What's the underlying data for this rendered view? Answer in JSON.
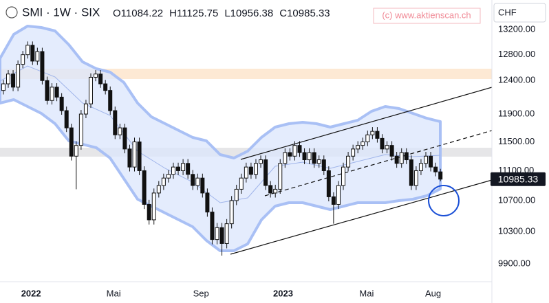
{
  "chart_data": {
    "type": "candlestick",
    "title": "SMI · 1W · SIX",
    "ohlc_letters": [
      "O",
      "H",
      "L",
      "C"
    ],
    "watermark": "(c) www.aktienscan.ch",
    "currency": "CHF",
    "log_scale": true,
    "ylim": [
      9685,
      13690
    ],
    "yticks": [
      {
        "value": 13200,
        "label": "13200.00"
      },
      {
        "value": 12800,
        "label": "12800.00"
      },
      {
        "value": 12400,
        "label": "12400.00"
      },
      {
        "value": 11900,
        "label": "11900.00"
      },
      {
        "value": 11500,
        "label": "11500.00"
      },
      {
        "value": 11100,
        "label": "11100.00"
      },
      {
        "value": 10700,
        "label": "10700.00"
      },
      {
        "value": 10300,
        "label": "10300.00"
      },
      {
        "value": 9900,
        "label": "9900.00"
      }
    ],
    "xlim": [
      -0.7,
      100.6
    ],
    "xticks": [
      {
        "value": 5.7,
        "label": "2022"
      },
      {
        "value": 22.7,
        "label": "Mai"
      },
      {
        "value": 40.7,
        "label": "Sep"
      },
      {
        "value": 57.6,
        "label": "2023"
      },
      {
        "value": 74.8,
        "label": "Mai"
      },
      {
        "value": 88.5,
        "label": "Aug"
      }
    ],
    "up_color": "#ffffff",
    "down_color": "#111111",
    "open": [
      12250,
      12350,
      12500,
      12300,
      12650,
      12800,
      12950,
      12700,
      12850,
      12400,
      12100,
      12300,
      12150,
      11950,
      11700,
      11300,
      11450,
      11900,
      12050,
      12450,
      12500,
      12350,
      12250,
      11950,
      11600,
      11700,
      11400,
      11150,
      11500,
      11100,
      10650,
      10450,
      10800,
      10900,
      11000,
      11050,
      11150,
      11100,
      11200,
      11050,
      10900,
      11000,
      10800,
      10550,
      10200,
      10350,
      10150,
      10400,
      10700,
      10850,
      11000,
      11150,
      11050,
      11200,
      11250,
      10900,
      10800,
      10850,
      11200,
      11350,
      11300,
      11450,
      11350,
      11250,
      11350,
      11200,
      11250,
      11100,
      10750,
      10650,
      10900,
      11150,
      11300,
      11400,
      11450,
      11500,
      11600,
      11650,
      11550,
      11400,
      11450,
      11300,
      11200,
      11350,
      11250,
      10900,
      11100,
      11200,
      11300,
      11150,
      11084.22
    ],
    "high": [
      12410,
      12560,
      12560,
      12710,
      12860,
      13010,
      13010,
      12910,
      12910,
      12460,
      12360,
      12360,
      12210,
      12010,
      11760,
      11510,
      11960,
      12110,
      12510,
      12560,
      12560,
      12410,
      12310,
      12010,
      11760,
      11760,
      11460,
      11560,
      11560,
      11160,
      10710,
      10860,
      10960,
      11060,
      11110,
      11210,
      11210,
      11260,
      11260,
      11110,
      11060,
      11060,
      10860,
      10610,
      10410,
      10410,
      10460,
      10760,
      10910,
      11060,
      11210,
      11210,
      11260,
      11310,
      11310,
      10960,
      10910,
      11260,
      11410,
      11410,
      11510,
      11510,
      11410,
      11410,
      11410,
      11310,
      11310,
      11160,
      10810,
      10960,
      11210,
      11360,
      11460,
      11510,
      11560,
      11660,
      11710,
      11710,
      11610,
      11510,
      11510,
      11360,
      11410,
      11410,
      11310,
      11160,
      11260,
      11360,
      11360,
      11210,
      11125.75
    ],
    "low": [
      12190,
      12290,
      12240,
      12240,
      12590,
      12740,
      12640,
      12640,
      12340,
      12040,
      12040,
      12090,
      11890,
      11640,
      11240,
      10850,
      11390,
      11840,
      11990,
      12390,
      12290,
      12190,
      11890,
      11540,
      11540,
      11340,
      11090,
      11090,
      11040,
      10590,
      10390,
      10390,
      10740,
      10840,
      10940,
      10990,
      11040,
      11040,
      10990,
      10840,
      10840,
      10740,
      10490,
      10140,
      10140,
      10000,
      10090,
      10340,
      10640,
      10790,
      10940,
      10990,
      10990,
      11140,
      10840,
      10740,
      10740,
      10790,
      11140,
      11240,
      11240,
      11290,
      11190,
      11190,
      11140,
      11140,
      11040,
      10690,
      10400,
      10590,
      10840,
      11090,
      11240,
      11340,
      11390,
      11440,
      11540,
      11490,
      11340,
      11340,
      11240,
      11140,
      11140,
      11190,
      10840,
      10840,
      11040,
      11140,
      11090,
      11024,
      10956.38
    ],
    "close": [
      12350,
      12500,
      12300,
      12650,
      12800,
      12950,
      12700,
      12850,
      12400,
      12100,
      12300,
      12150,
      11950,
      11700,
      11300,
      11450,
      11900,
      12050,
      12450,
      12500,
      12350,
      12250,
      11950,
      11600,
      11700,
      11400,
      11150,
      11500,
      11100,
      10650,
      10450,
      10800,
      10900,
      11000,
      11050,
      11150,
      11100,
      11200,
      11050,
      10900,
      11000,
      10800,
      10550,
      10200,
      10350,
      10150,
      10400,
      10700,
      10850,
      11000,
      11150,
      11050,
      11200,
      11250,
      10900,
      10800,
      10850,
      11200,
      11350,
      11300,
      11450,
      11350,
      11250,
      11350,
      11200,
      11250,
      11100,
      10750,
      10650,
      10900,
      11150,
      11300,
      11400,
      11450,
      11500,
      11600,
      11650,
      11550,
      11400,
      11450,
      11300,
      11200,
      11350,
      11250,
      10900,
      11100,
      11200,
      11300,
      11150,
      11084,
      10985.33
    ]
  }
}
